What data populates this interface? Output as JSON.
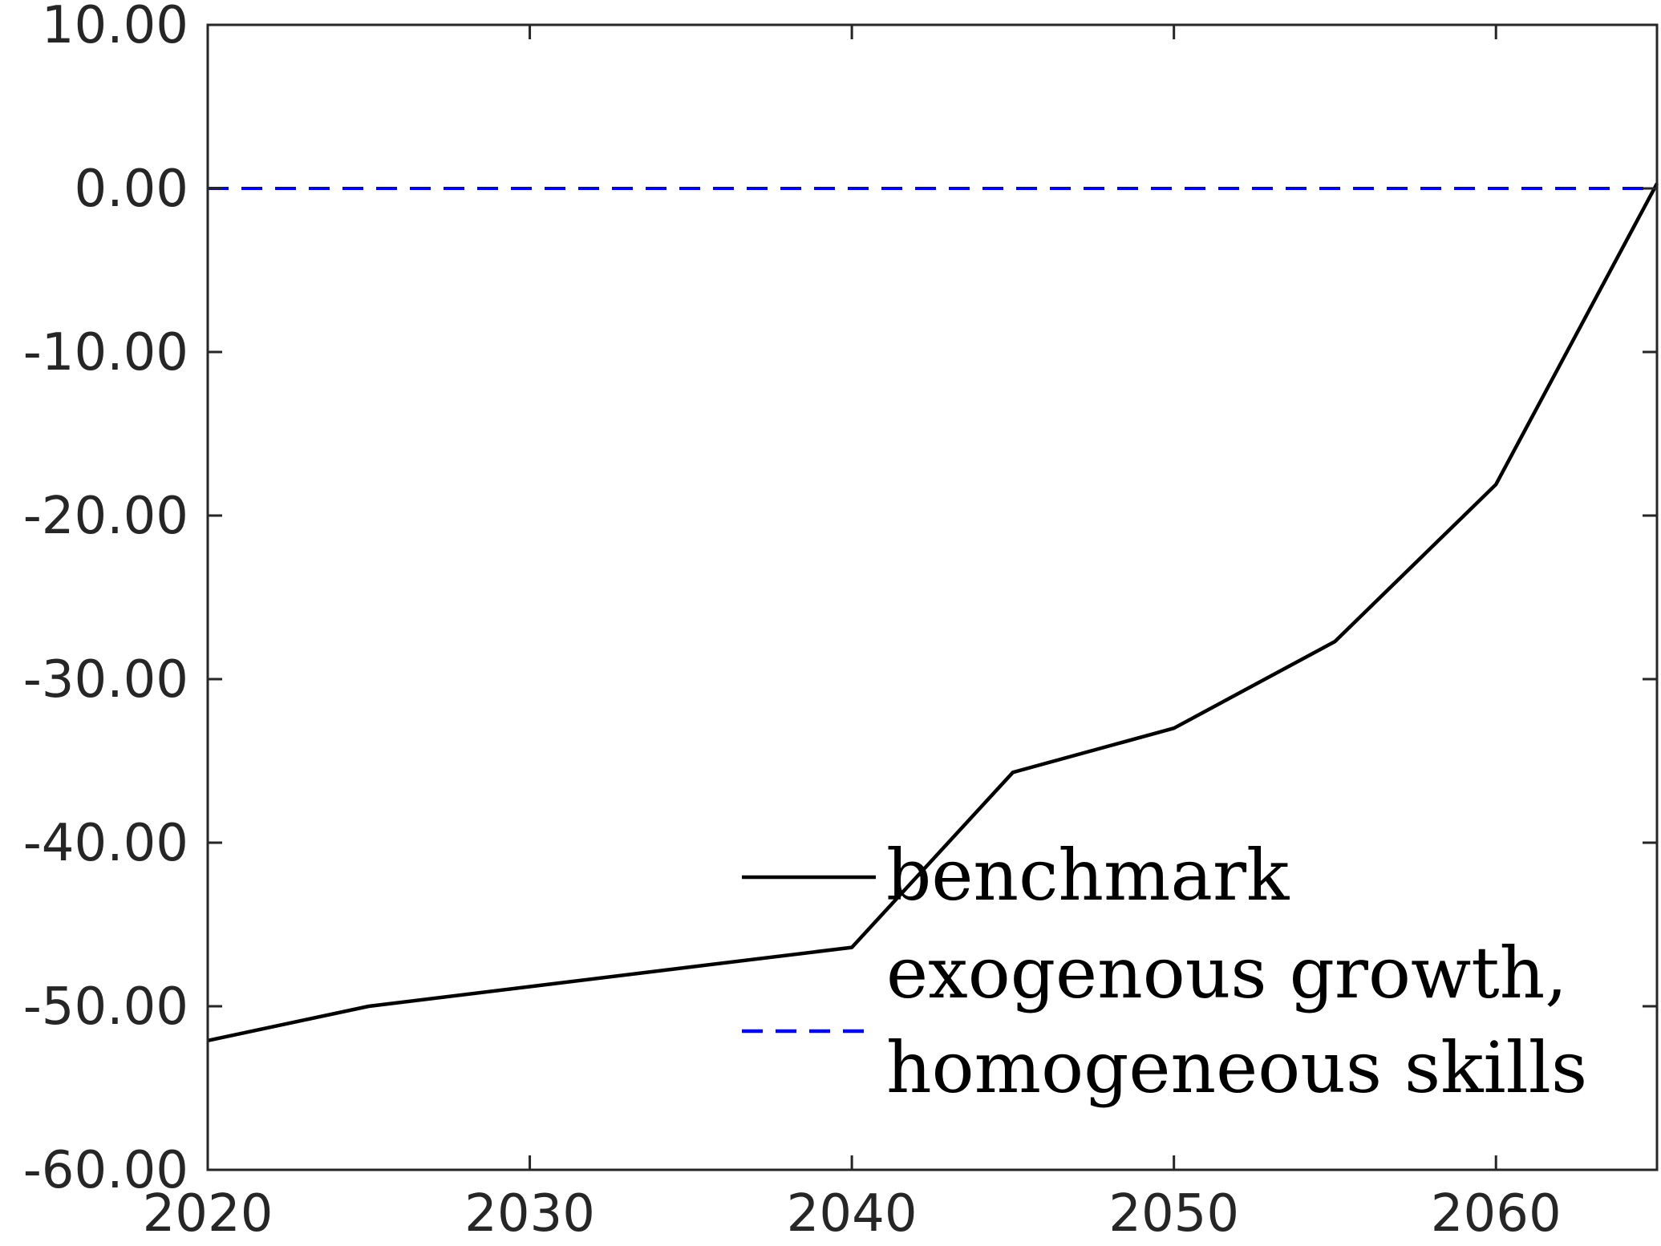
{
  "chart_data": {
    "type": "line",
    "title": "",
    "xlabel": "",
    "ylabel": "",
    "xlim": [
      2020,
      2065
    ],
    "ylim": [
      -60,
      10
    ],
    "x_ticks": [
      2020,
      2030,
      2040,
      2050,
      2060
    ],
    "x_tick_labels": [
      "2020",
      "2030",
      "2040",
      "2050",
      "2060"
    ],
    "y_ticks": [
      10,
      0,
      -10,
      -20,
      -30,
      -40,
      -50,
      -60
    ],
    "y_tick_labels": [
      "10.00",
      "0.00",
      "-10.00",
      "-20.00",
      "-30.00",
      "-40.00",
      "-50.00",
      "-60.00"
    ],
    "grid": false,
    "legend_position": "bottom-right",
    "series": [
      {
        "name": "benchmark",
        "color": "#000000",
        "dash": "solid",
        "x": [
          2020,
          2025,
          2030,
          2035,
          2040,
          2045,
          2050,
          2055,
          2060,
          2065
        ],
        "y": [
          -52.1,
          -50.0,
          -48.8,
          -47.6,
          -46.4,
          -35.7,
          -33.0,
          -27.7,
          -18.1,
          0.3
        ]
      },
      {
        "name": "exogenous growth, homogeneous skills",
        "legend_lines": [
          "exogenous growth,",
          "homogeneous skills"
        ],
        "color": "#0000ff",
        "dash": "dashed",
        "x": [
          2020,
          2025,
          2030,
          2035,
          2040,
          2045,
          2050,
          2055,
          2060,
          2065
        ],
        "y": [
          0,
          0,
          0,
          0,
          0,
          0,
          0,
          0,
          0,
          0
        ]
      }
    ]
  }
}
